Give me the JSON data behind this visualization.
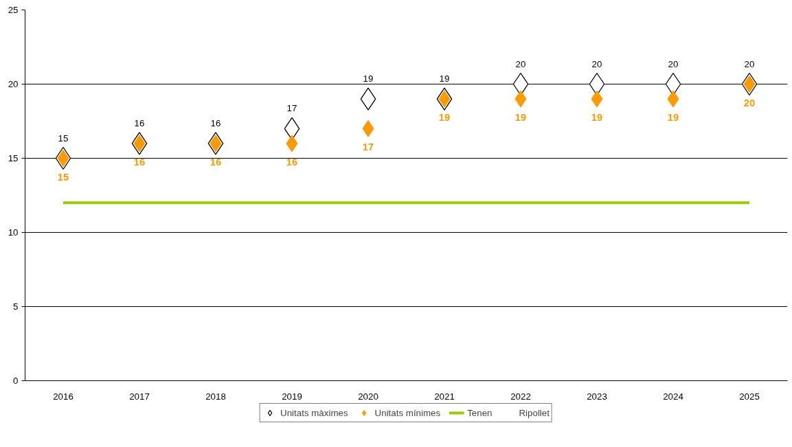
{
  "chart_data": {
    "type": "scatter",
    "categories": [
      "2016",
      "2017",
      "2018",
      "2019",
      "2020",
      "2021",
      "2022",
      "2023",
      "2024",
      "2025"
    ],
    "series": [
      {
        "name": "Unitats màximes",
        "color": "#000000",
        "marker": "diamond",
        "values": [
          15,
          16,
          16,
          17,
          19,
          19,
          20,
          20,
          20,
          20
        ],
        "value_labels": [
          "15",
          "16",
          "16",
          "17",
          "19",
          "19",
          "20",
          "20",
          "20",
          "20"
        ]
      },
      {
        "name": "Unitats mínimes",
        "color": "#ff9900",
        "marker": "diamond",
        "values": [
          15,
          16,
          16,
          16,
          17,
          19,
          19,
          19,
          19,
          20
        ],
        "value_labels": [
          "15",
          "16",
          "16",
          "16",
          "17",
          "19",
          "19",
          "19",
          "19",
          "20"
        ]
      },
      {
        "name": "Tenen",
        "type": "line",
        "color": "#99cc00",
        "values": [
          12,
          12,
          12,
          12,
          12,
          12,
          12,
          12,
          12,
          12
        ]
      }
    ],
    "legend_title": "Ripollet",
    "ylim": [
      0,
      25
    ],
    "yticks": [
      0,
      5,
      10,
      15,
      20,
      25
    ],
    "grid": "y",
    "legend": "bottom"
  }
}
